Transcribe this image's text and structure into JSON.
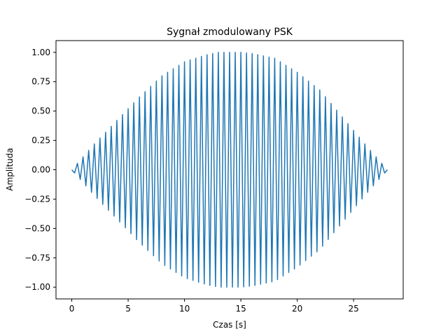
{
  "chart_data": {
    "type": "line",
    "title": "Sygnał zmodulowany PSK",
    "xlabel": "Czas [s]",
    "ylabel": "Amplituda",
    "xlim": [
      -1.4,
      29.4
    ],
    "ylim": [
      -1.1,
      1.1
    ],
    "xticks": [
      0,
      5,
      10,
      15,
      20,
      25
    ],
    "xtick_labels": [
      "0",
      "5",
      "10",
      "15",
      "20",
      "25"
    ],
    "yticks": [
      -1.0,
      -0.75,
      -0.5,
      -0.25,
      0.0,
      0.25,
      0.5,
      0.75,
      1.0
    ],
    "ytick_labels": [
      "−1.00",
      "−0.75",
      "−0.50",
      "−0.25",
      "0.00",
      "0.25",
      "0.50",
      "0.75",
      "1.00"
    ],
    "grid": false,
    "legend": "none",
    "colors": {
      "series": "#1f77b4",
      "axes": "#000000",
      "background": "#ffffff"
    },
    "series": [
      {
        "envelope_x": [
          0,
          2,
          4,
          6,
          8,
          10,
          12,
          13,
          14,
          15,
          16,
          18,
          20,
          22,
          24,
          26,
          28
        ],
        "envelope_y": [
          0.0,
          0.22,
          0.42,
          0.62,
          0.8,
          0.92,
          0.98,
          1.0,
          1.0,
          1.0,
          0.99,
          0.95,
          0.83,
          0.68,
          0.45,
          0.22,
          0.0
        ],
        "carrier_period_s": 0.5,
        "x_start": 0,
        "x_end": 28
      }
    ]
  }
}
